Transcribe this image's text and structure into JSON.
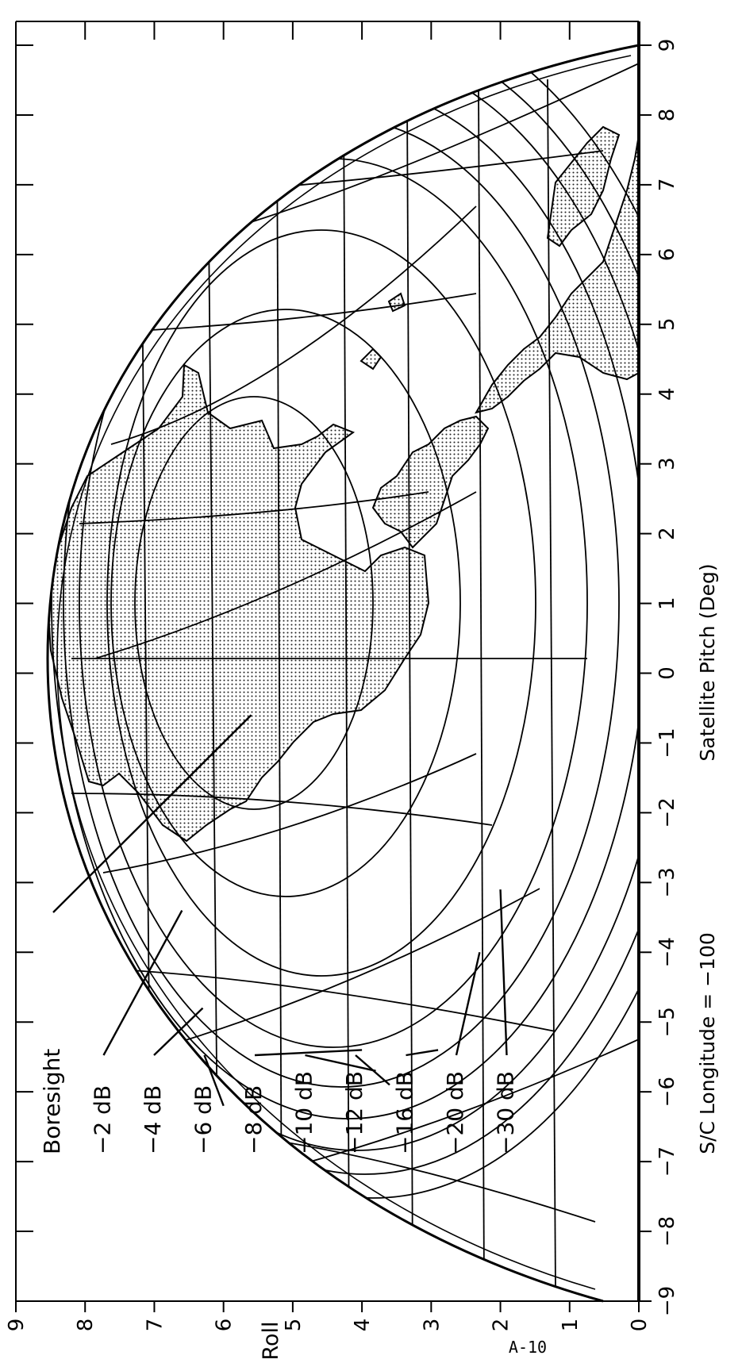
{
  "chart_data": {
    "type": "line",
    "title": "",
    "subtitle": "S/C Longitude = −100",
    "xlabel": "Satellite Pitch (Deg)",
    "ylabel": "Roll",
    "xlim": [
      -9,
      9
    ],
    "ylim": [
      0,
      9
    ],
    "x_ticks": [
      "−9",
      "−8",
      "−7",
      "−6",
      "−5",
      "−4",
      "−3",
      "−2",
      "−1",
      "0",
      "1",
      "2",
      "3",
      "4",
      "5",
      "6",
      "7",
      "8",
      "9"
    ],
    "y_ticks": [
      "0",
      "1",
      "2",
      "3",
      "4",
      "5",
      "6",
      "7",
      "8",
      "9"
    ],
    "grid": false,
    "orientation": "rotated 90° counter-clockwise on the page",
    "boresight": {
      "label": "Boresight",
      "x": -0.6,
      "y": 5.6
    },
    "contours": [
      {
        "label": "−2 dB",
        "level": -2,
        "anchor": {
          "x": -3.4,
          "y": 6.6
        }
      },
      {
        "label": "−4 dB",
        "level": -4,
        "anchor": {
          "x": -4.8,
          "y": 6.3
        }
      },
      {
        "label": "−6 dB",
        "level": -6,
        "anchor": {
          "x": -6.2,
          "y": 6.0
        }
      },
      {
        "label": "−8 dB",
        "level": -8,
        "anchor": {
          "x": -5.4,
          "y": 4.0
        }
      },
      {
        "label": "−10 dB",
        "level": -10,
        "anchor": {
          "x": -5.7,
          "y": 3.8
        }
      },
      {
        "label": "−12 dB",
        "level": -12,
        "anchor": {
          "x": -5.9,
          "y": 3.6
        }
      },
      {
        "label": "−16 dB",
        "level": -16,
        "anchor": {
          "x": -5.4,
          "y": 2.9
        }
      },
      {
        "label": "−20 dB",
        "level": -20,
        "anchor": {
          "x": -4.0,
          "y": 2.3
        }
      },
      {
        "label": "−30 dB",
        "level": -30,
        "anchor": {
          "x": -3.1,
          "y": 2.0
        }
      }
    ],
    "page_number": "A-10"
  }
}
